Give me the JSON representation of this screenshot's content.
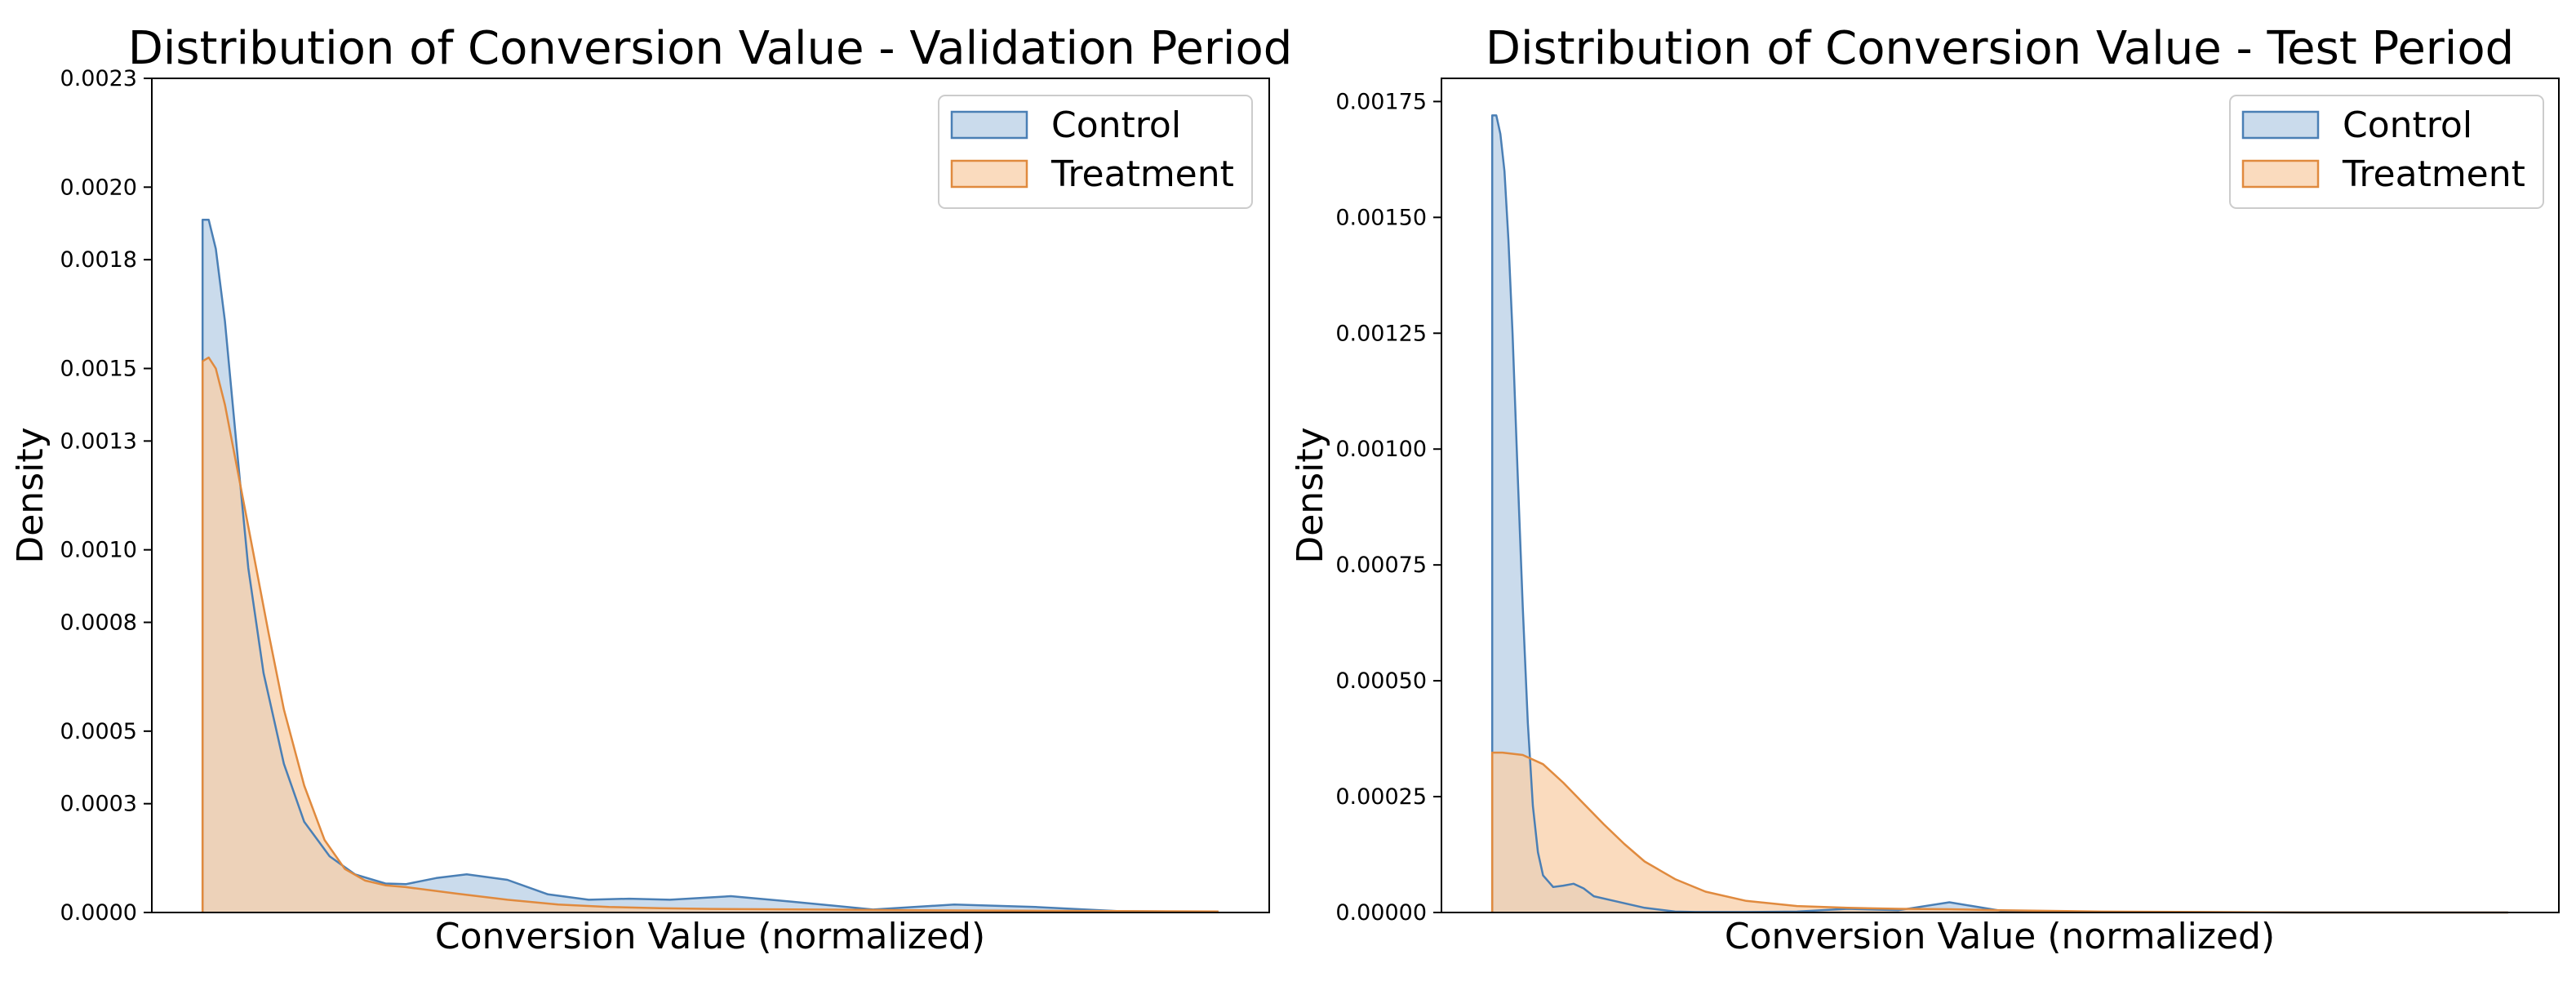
{
  "figure": {
    "background": "#ffffff"
  },
  "chart_data": [
    {
      "type": "area",
      "title": "Distribution of Conversion Value - Validation Period",
      "xlabel": "Conversion Value (normalized)",
      "ylabel": "Density",
      "xlim": [
        -0.05,
        1.05
      ],
      "ylim": [
        0,
        0.0023
      ],
      "yticks": [
        0,
        0.0003,
        0.0005,
        0.0008,
        0.001,
        0.0013,
        0.0015,
        0.0018,
        0.002,
        0.0023
      ],
      "ytick_labels": [
        "0.0000",
        "0.0003",
        "0.0005",
        "0.0008",
        "0.0010",
        "0.0013",
        "0.0015",
        "0.0018",
        "0.0020",
        "0.0023"
      ],
      "grid": false,
      "legend": "top-right",
      "series": [
        {
          "name": "Control",
          "color": "#4a7fb5",
          "fill": "#b8cfe6",
          "x": [
            0,
            0.006,
            0.013,
            0.022,
            0.033,
            0.045,
            0.06,
            0.08,
            0.1,
            0.125,
            0.15,
            0.18,
            0.2,
            0.23,
            0.26,
            0.3,
            0.34,
            0.38,
            0.42,
            0.46,
            0.52,
            0.58,
            0.66,
            0.74,
            0.82,
            0.9,
            1.0
          ],
          "y": [
            0.00191,
            0.00191,
            0.00183,
            0.00163,
            0.0013,
            0.00095,
            0.00066,
            0.00041,
            0.00025,
            0.000155,
            0.000105,
            8e-05,
            7.8e-05,
            9.5e-05,
            0.000105,
            9e-05,
            5e-05,
            3.5e-05,
            3.8e-05,
            3.5e-05,
            4.5e-05,
            3e-05,
            8e-06,
            2.2e-05,
            1.5e-05,
            4e-06,
            1.5e-06
          ]
        },
        {
          "name": "Treatment",
          "color": "#e08a3e",
          "fill": "#f8cfa8",
          "x": [
            0,
            0.006,
            0.013,
            0.022,
            0.035,
            0.05,
            0.065,
            0.08,
            0.1,
            0.12,
            0.14,
            0.16,
            0.18,
            0.2,
            0.25,
            0.3,
            0.35,
            0.4,
            0.45,
            0.5,
            0.6,
            0.7,
            0.8,
            0.9,
            1.0
          ],
          "y": [
            0.00152,
            0.00153,
            0.0015,
            0.0014,
            0.00121,
            0.00099,
            0.00077,
            0.00056,
            0.00035,
            0.0002,
            0.00012,
            8.8e-05,
            7.5e-05,
            7e-05,
            5.2e-05,
            3.5e-05,
            2.2e-05,
            1.5e-05,
            1.2e-05,
            1e-05,
            8e-06,
            6e-06,
            5e-06,
            4e-06,
            3e-06
          ]
        }
      ]
    },
    {
      "type": "area",
      "title": "Distribution of Conversion Value - Test Period",
      "xlabel": "Conversion Value (normalized)",
      "ylabel": "Density",
      "xlim": [
        -0.05,
        1.05
      ],
      "ylim": [
        0,
        0.0018
      ],
      "yticks": [
        0,
        0.00025,
        0.0005,
        0.00075,
        0.001,
        0.00125,
        0.0015,
        0.00175
      ],
      "ytick_labels": [
        "0.00000",
        "0.00025",
        "0.00050",
        "0.00075",
        "0.00100",
        "0.00125",
        "0.00150",
        "0.00175"
      ],
      "grid": false,
      "legend": "top-right",
      "series": [
        {
          "name": "Control",
          "color": "#4a7fb5",
          "fill": "#b8cfe6",
          "x": [
            0,
            0.004,
            0.008,
            0.012,
            0.016,
            0.02,
            0.025,
            0.03,
            0.035,
            0.04,
            0.045,
            0.05,
            0.06,
            0.07,
            0.08,
            0.09,
            0.1,
            0.12,
            0.15,
            0.18,
            0.2,
            0.25,
            0.3,
            0.35,
            0.4,
            0.45,
            0.5,
            0.6,
            0.8,
            1.0
          ],
          "y": [
            0.00172,
            0.00172,
            0.00168,
            0.0016,
            0.00145,
            0.00125,
            0.00095,
            0.00066,
            0.00041,
            0.00023,
            0.00013,
            8e-05,
            5.5e-05,
            5.8e-05,
            6.2e-05,
            5.2e-05,
            3.5e-05,
            2.5e-05,
            1e-05,
            2e-06,
            1e-06,
            1e-06,
            2e-06,
            8e-06,
            5e-06,
            2.2e-05,
            4e-06,
            1e-06,
            0,
            0
          ]
        },
        {
          "name": "Treatment",
          "color": "#e08a3e",
          "fill": "#f8cfa8",
          "x": [
            0,
            0.01,
            0.03,
            0.05,
            0.07,
            0.09,
            0.11,
            0.13,
            0.15,
            0.18,
            0.21,
            0.25,
            0.3,
            0.35,
            0.4,
            0.45,
            0.5,
            0.6,
            0.7,
            0.8,
            0.9,
            1.0
          ],
          "y": [
            0.000345,
            0.000345,
            0.00034,
            0.00032,
            0.00028,
            0.000235,
            0.00019,
            0.000148,
            0.00011,
            7.2e-05,
            4.5e-05,
            2.5e-05,
            1.4e-05,
            1e-05,
            8e-06,
            7e-06,
            5e-06,
            2e-06,
            1e-06,
            0,
            0,
            0
          ]
        }
      ]
    }
  ]
}
